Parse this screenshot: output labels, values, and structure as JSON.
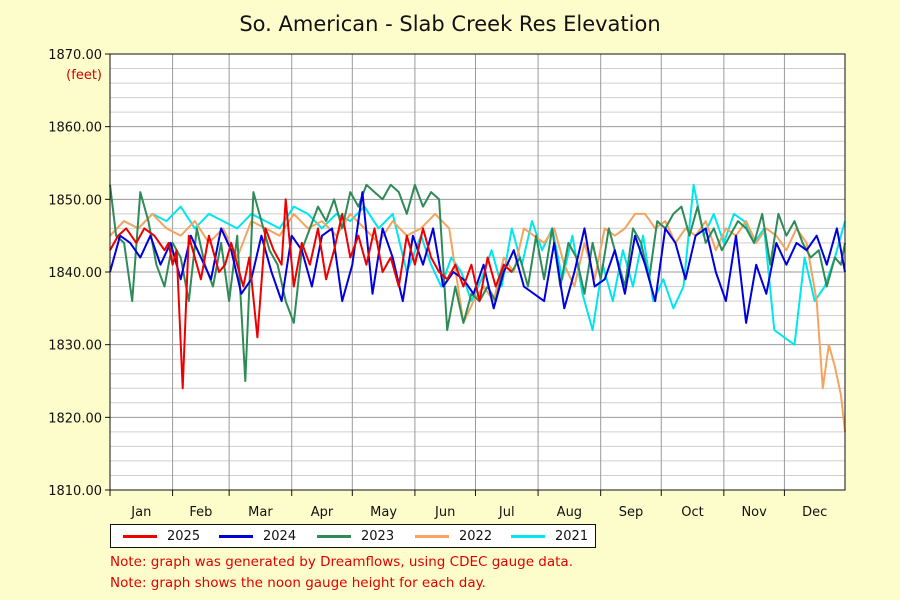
{
  "title": "So. American - Slab Creek Res Elevation",
  "ylabel_unit": "(feet)",
  "notes": [
    "Note: graph was generated by Dreamflows, using CDEC gauge data.",
    "Note: graph shows the noon gauge height for each day."
  ],
  "chart_data": {
    "type": "line",
    "title": "So. American - Slab Creek Res Elevation",
    "ylabel": "(feet)",
    "ylim": [
      1810,
      1870
    ],
    "yticks": [
      1810,
      1820,
      1830,
      1840,
      1850,
      1860,
      1870
    ],
    "ytick_labels": [
      "1810.00",
      "1820.00",
      "1830.00",
      "1840.00",
      "1850.00",
      "1860.00",
      "1870.00"
    ],
    "xlim_days": [
      1,
      365
    ],
    "xtick_labels": [
      "Jan",
      "Feb",
      "Mar",
      "Apr",
      "May",
      "Jun",
      "Jul",
      "Aug",
      "Sep",
      "Oct",
      "Nov",
      "Dec"
    ],
    "grid": true,
    "legend_position": "bottom",
    "series": [
      {
        "name": "2025",
        "color": "#ee0000",
        "x": [
          1,
          5,
          9,
          14,
          18,
          23,
          28,
          30,
          32,
          34,
          37,
          40,
          43,
          46,
          50,
          55,
          58,
          61,
          64,
          67,
          70,
          74,
          78,
          82,
          86,
          88,
          92,
          96,
          100,
          104,
          108,
          112,
          116,
          120,
          124,
          128,
          132,
          136,
          140,
          144,
          148,
          152,
          156,
          160,
          164,
          168,
          172,
          176,
          180,
          184,
          188,
          192,
          196,
          200
        ],
        "y": [
          1843,
          1845,
          1846,
          1844,
          1846,
          1845,
          1843,
          1844,
          1841,
          1843,
          1824,
          1845,
          1842,
          1839,
          1845,
          1840,
          1841,
          1844,
          1841,
          1838,
          1842,
          1831,
          1846,
          1843,
          1841,
          1850,
          1838,
          1844,
          1841,
          1846,
          1839,
          1843,
          1848,
          1842,
          1845,
          1841,
          1846,
          1840,
          1842,
          1838,
          1845,
          1841,
          1846,
          1842,
          1840,
          1839,
          1841,
          1838,
          1841,
          1836,
          1842,
          1838,
          1841,
          1840
        ]
      },
      {
        "name": "2024",
        "color": "#0000dd",
        "x": [
          1,
          6,
          11,
          16,
          21,
          26,
          31,
          36,
          41,
          46,
          51,
          56,
          61,
          66,
          71,
          76,
          81,
          86,
          91,
          96,
          101,
          106,
          111,
          116,
          121,
          126,
          131,
          136,
          141,
          146,
          151,
          156,
          161,
          166,
          171,
          176,
          181,
          186,
          191,
          196,
          201,
          206,
          211,
          216,
          221,
          226,
          231,
          236,
          241,
          246,
          251,
          256,
          261,
          266,
          271,
          276,
          281,
          286,
          291,
          296,
          301,
          306,
          311,
          316,
          321,
          326,
          331,
          336,
          341,
          346,
          351,
          356,
          361,
          365
        ],
        "y": [
          1840,
          1845,
          1844,
          1842,
          1845,
          1841,
          1844,
          1839,
          1845,
          1842,
          1839,
          1846,
          1843,
          1837,
          1839,
          1845,
          1840,
          1836,
          1845,
          1843,
          1838,
          1845,
          1846,
          1836,
          1841,
          1851,
          1837,
          1846,
          1842,
          1836,
          1845,
          1841,
          1846,
          1838,
          1840,
          1839,
          1837,
          1841,
          1835,
          1840,
          1843,
          1838,
          1837,
          1836,
          1844,
          1835,
          1840,
          1846,
          1838,
          1839,
          1843,
          1837,
          1845,
          1841,
          1836,
          1846,
          1844,
          1839,
          1845,
          1846,
          1840,
          1836,
          1845,
          1833,
          1841,
          1837,
          1844,
          1841,
          1844,
          1843,
          1845,
          1841,
          1846,
          1840
        ]
      },
      {
        "name": "2023",
        "color": "#2e8b57",
        "x": [
          1,
          4,
          8,
          12,
          16,
          20,
          24,
          28,
          32,
          36,
          40,
          44,
          48,
          52,
          56,
          60,
          64,
          68,
          72,
          76,
          80,
          84,
          88,
          92,
          96,
          100,
          104,
          108,
          112,
          116,
          120,
          124,
          128,
          132,
          136,
          140,
          144,
          148,
          152,
          156,
          160,
          164,
          168,
          172,
          176,
          180,
          184,
          188,
          192,
          196,
          200,
          204,
          208,
          212,
          216,
          220,
          224,
          228,
          232,
          236,
          240,
          244,
          248,
          252,
          256,
          260,
          264,
          268,
          272,
          276,
          280,
          284,
          288,
          292,
          296,
          300,
          304,
          308,
          312,
          316,
          320,
          324,
          328,
          332,
          336,
          340,
          344,
          348,
          352,
          356,
          360,
          363,
          365
        ],
        "y": [
          1852,
          1845,
          1844,
          1836,
          1851,
          1847,
          1841,
          1838,
          1844,
          1842,
          1836,
          1846,
          1841,
          1838,
          1844,
          1836,
          1845,
          1825,
          1851,
          1847,
          1843,
          1841,
          1836,
          1833,
          1843,
          1846,
          1849,
          1847,
          1850,
          1846,
          1851,
          1849,
          1852,
          1851,
          1850,
          1852,
          1851,
          1848,
          1852,
          1849,
          1851,
          1850,
          1832,
          1838,
          1833,
          1837,
          1836,
          1838,
          1836,
          1841,
          1840,
          1842,
          1838,
          1845,
          1839,
          1846,
          1838,
          1844,
          1842,
          1837,
          1844,
          1839,
          1846,
          1842,
          1838,
          1846,
          1844,
          1839,
          1847,
          1846,
          1848,
          1849,
          1845,
          1849,
          1844,
          1846,
          1843,
          1845,
          1847,
          1846,
          1844,
          1848,
          1841,
          1848,
          1845,
          1847,
          1844,
          1842,
          1843,
          1838,
          1842,
          1841,
          1844
        ]
      },
      {
        "name": "2022",
        "color": "#f4a460",
        "x": [
          1,
          8,
          15,
          22,
          29,
          36,
          43,
          50,
          57,
          64,
          71,
          78,
          85,
          92,
          99,
          106,
          113,
          120,
          127,
          134,
          141,
          148,
          155,
          162,
          169,
          176,
          181,
          186,
          191,
          196,
          201,
          206,
          211,
          216,
          221,
          226,
          231,
          236,
          241,
          246,
          251,
          256,
          261,
          266,
          271,
          276,
          281,
          286,
          291,
          296,
          301,
          306,
          311,
          316,
          321,
          326,
          331,
          336,
          341,
          346,
          351,
          354,
          357,
          360,
          363,
          365
        ],
        "y": [
          1845,
          1847,
          1846,
          1848,
          1846,
          1845,
          1847,
          1844,
          1846,
          1842,
          1847,
          1846,
          1845,
          1848,
          1846,
          1847,
          1845,
          1848,
          1846,
          1844,
          1847,
          1845,
          1846,
          1848,
          1846,
          1833,
          1836,
          1838,
          1836,
          1842,
          1840,
          1846,
          1845,
          1844,
          1846,
          1841,
          1838,
          1844,
          1839,
          1846,
          1845,
          1846,
          1848,
          1848,
          1846,
          1847,
          1844,
          1846,
          1845,
          1847,
          1843,
          1846,
          1845,
          1847,
          1844,
          1846,
          1845,
          1843,
          1846,
          1844,
          1836,
          1824,
          1830,
          1827,
          1823,
          1818
        ]
      },
      {
        "name": "2021",
        "color": "#00e5ee",
        "x": [
          1,
          8,
          15,
          22,
          29,
          36,
          43,
          50,
          57,
          64,
          71,
          78,
          85,
          92,
          99,
          106,
          113,
          120,
          127,
          134,
          141,
          148,
          155,
          160,
          165,
          170,
          175,
          180,
          185,
          190,
          195,
          200,
          205,
          210,
          215,
          220,
          225,
          230,
          235,
          240,
          245,
          250,
          255,
          260,
          265,
          270,
          275,
          280,
          285,
          290,
          295,
          300,
          305,
          310,
          315,
          320,
          325,
          330,
          335,
          340,
          345,
          350,
          355,
          360,
          365
        ],
        "y": [
          1845,
          1847,
          1846,
          1848,
          1847,
          1849,
          1846,
          1848,
          1847,
          1846,
          1848,
          1847,
          1846,
          1849,
          1848,
          1846,
          1848,
          1847,
          1849,
          1846,
          1848,
          1840,
          1845,
          1841,
          1838,
          1842,
          1840,
          1836,
          1839,
          1843,
          1838,
          1846,
          1841,
          1847,
          1843,
          1846,
          1839,
          1845,
          1837,
          1832,
          1841,
          1836,
          1843,
          1838,
          1845,
          1836,
          1839,
          1835,
          1838,
          1852,
          1845,
          1848,
          1844,
          1848,
          1847,
          1844,
          1846,
          1832,
          1831,
          1830,
          1842,
          1836,
          1838,
          1842,
          1847
        ]
      }
    ]
  }
}
